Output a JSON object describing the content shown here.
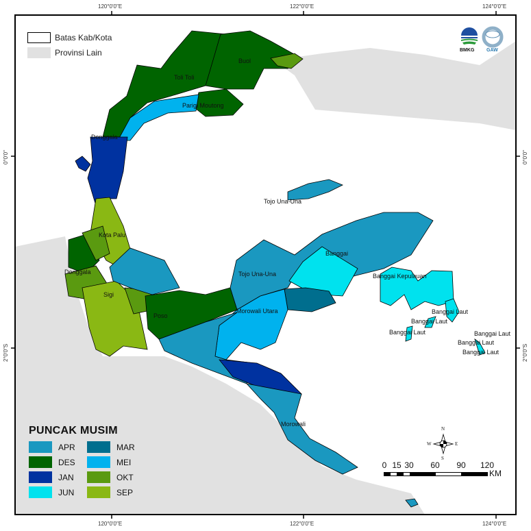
{
  "graticule": {
    "top": [
      "120°0'0\"E",
      "122°0'0\"E",
      "124°0'0\"E"
    ],
    "bottom": [
      "120°0'0\"E",
      "122°0'0\"E",
      "124°0'0\"E"
    ],
    "left": [
      "0°0'0\"",
      "2°0'0\"S"
    ],
    "right": [
      "0°0'0\"",
      "2°0'0\"S"
    ]
  },
  "top_legend": {
    "boundary": "Batas Kab/Kota",
    "other_province": "Provinsi Lain"
  },
  "logos": {
    "bmkg": "BMKG",
    "gaw": "GAW"
  },
  "legend": {
    "title": "PUNCAK MUSIM",
    "items": [
      {
        "label": "APR",
        "color": "#1a98c0"
      },
      {
        "label": "MAR",
        "color": "#006e8e"
      },
      {
        "label": "DES",
        "color": "#006400"
      },
      {
        "label": "MEI",
        "color": "#00b2ee"
      },
      {
        "label": "JAN",
        "color": "#0032a0"
      },
      {
        "label": "OKT",
        "color": "#5a9a10"
      },
      {
        "label": "JUN",
        "color": "#00e2ee"
      },
      {
        "label": "SEP",
        "color": "#8ab814"
      }
    ]
  },
  "other_province_color": "#e1e1e1",
  "region_labels": [
    "Buol",
    "Toli Toli",
    "Parigi Moutong",
    "Donggala",
    "Tojo Una-Una",
    "Kota Palu",
    "Donggala",
    "Sigi",
    "Poso",
    "Tojo Una-Una",
    "Banggai",
    "Morowali Utara",
    "Banggai Kepulauan",
    "Banggai Laut",
    "Banggai Laut",
    "Banggai Laut",
    "Banggai Laut",
    "Banggai Laut",
    "Banggai Laut",
    "Morowali"
  ],
  "compass": {
    "n": "N",
    "s": "S",
    "e": "E",
    "w": "W"
  },
  "scale": {
    "ticks": [
      "0",
      "15",
      "30",
      "60",
      "90",
      "120"
    ],
    "unit": "KM"
  }
}
